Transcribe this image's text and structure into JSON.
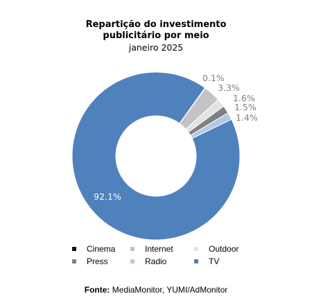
{
  "chart_data": {
    "type": "pie",
    "title": "Repartição do investimento publicitário por meio",
    "title_lines": [
      "Repartição do investimento",
      "publicitário por meio"
    ],
    "subtitle": "janeiro 2025",
    "donut": true,
    "legend_position": "bottom",
    "series": [
      {
        "name": "Cinema",
        "value": 0.1,
        "label": "0.1%",
        "color": "#111111"
      },
      {
        "name": "Internet",
        "value": 3.3,
        "label": "3.3%",
        "color": "#c3c3c3"
      },
      {
        "name": "Outdoor",
        "value": 1.6,
        "label": "1.6%",
        "color": "#e3e3e3"
      },
      {
        "name": "Press",
        "value": 1.5,
        "label": "1.5%",
        "color": "#808080"
      },
      {
        "name": "Radio",
        "value": 1.4,
        "label": "1.4%",
        "color": "#b4c7e7"
      },
      {
        "name": "TV",
        "value": 92.1,
        "label": "92.1%",
        "color": "#4f81bd"
      }
    ]
  },
  "source": {
    "label": "Fonte:",
    "text": "MediaMonitor, YUMI/AdMonitor"
  }
}
